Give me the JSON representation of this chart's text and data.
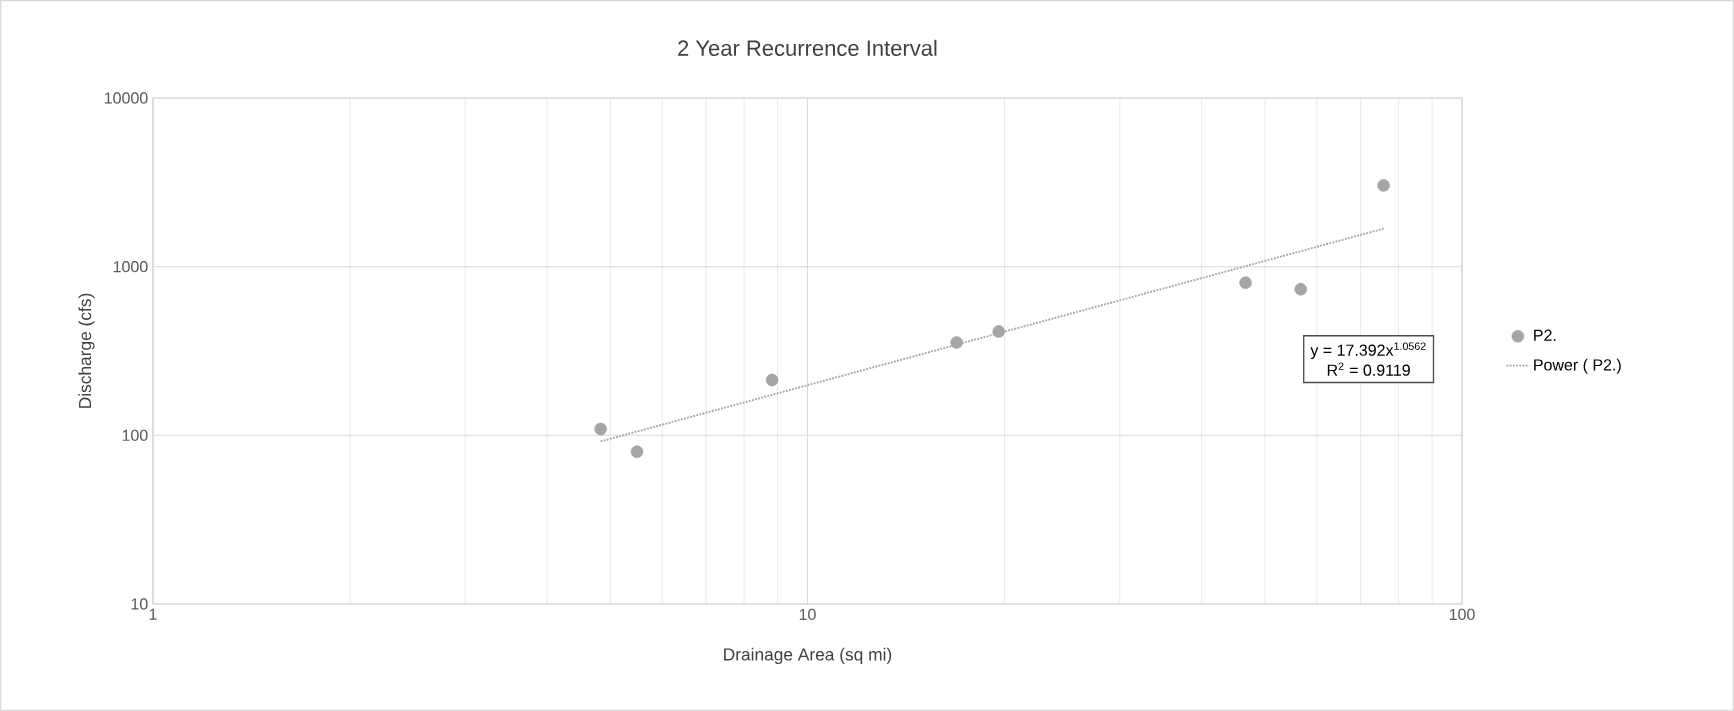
{
  "chart_data": {
    "type": "scatter",
    "title": "2 Year Recurrence Interval",
    "xlabel": "Drainage Area (sq mi)",
    "ylabel": "Discharge (cfs)",
    "series": [
      {
        "name": "P2.",
        "color": "#a5a5a5",
        "marker": "circle",
        "x": [
          4.83,
          5.49,
          8.83,
          16.9,
          19.6,
          46.7,
          56.7,
          75.9
        ],
        "values": [
          109,
          80,
          213,
          355,
          413,
          803,
          735,
          3030
        ]
      },
      {
        "name": "Power (    P2.)",
        "type": "line",
        "color": "#a5a5a5",
        "marker": "none",
        "line_style": "dotted",
        "x": [
          4.83,
          75.9
        ],
        "values": [
          92,
          1680
        ]
      }
    ],
    "annotations": [
      "y = 17.392x$^{1.0562}$",
      "R$^{2}$ = 0.9119"
    ],
    "log": "xy",
    "xlim": [
      1,
      100
    ],
    "ylim": [
      10,
      10000
    ],
    "xticks": [
      1,
      10,
      100
    ],
    "yticks": [
      10,
      100,
      1000,
      10000
    ],
    "grid": true,
    "legend": "right"
  }
}
